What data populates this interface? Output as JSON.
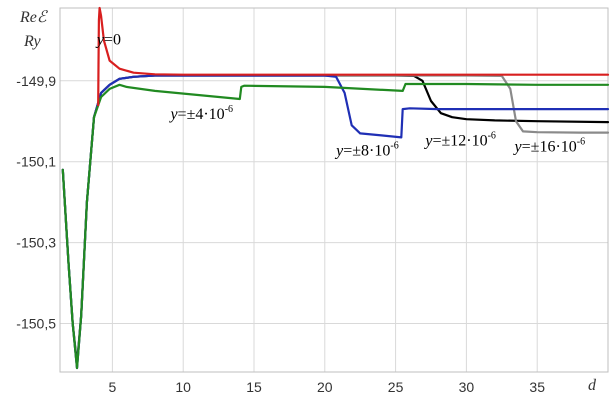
{
  "chart_data": {
    "type": "line",
    "title": "",
    "ylabel_line1": "Reℰ",
    "ylabel_line2": "Ry",
    "xlabel": "d",
    "xlim": [
      1.3,
      40
    ],
    "ylim": [
      -150.62,
      -149.72
    ],
    "x_ticks": [
      5,
      10,
      15,
      20,
      25,
      30,
      35
    ],
    "x_tick_labels": [
      "5",
      "10",
      "15",
      "20",
      "25",
      "30",
      "35"
    ],
    "y_ticks": [
      -149.9,
      -150.1,
      -150.3,
      -150.5
    ],
    "y_tick_labels": [
      "-149,9",
      "-150,1",
      "-150,3",
      "-150,5"
    ],
    "grid": true,
    "legend": "none",
    "annotations": [
      {
        "prefix": "y",
        "text": "=0",
        "sup": "",
        "color": "#000000",
        "x": 3.9,
        "y": -149.81
      },
      {
        "prefix": "y",
        "text": "=±4·10",
        "sup": "-6",
        "color": "#000000",
        "x": 9.1,
        "y": -149.995
      },
      {
        "prefix": "y",
        "text": "=±8·10",
        "sup": "-6",
        "color": "#000000",
        "x": 20.8,
        "y": -150.085
      },
      {
        "prefix": "y",
        "text": "=±12·10",
        "sup": "-6",
        "color": "#000000",
        "x": 27.1,
        "y": -150.06
      },
      {
        "prefix": "y",
        "text": "=±16·10",
        "sup": "-6",
        "color": "#000000",
        "x": 33.4,
        "y": -150.075
      }
    ],
    "series": [
      {
        "color": "#000000",
        "x": [
          1.5,
          1.9,
          2.2,
          2.5,
          2.8,
          3.2,
          3.7,
          4.2,
          4.8,
          5.5,
          6.5,
          8,
          10,
          14,
          20,
          25,
          26.3,
          26.9,
          27.5,
          28.2,
          29,
          30,
          32,
          35,
          40
        ],
        "y": [
          -150.12,
          -150.35,
          -150.5,
          -150.6,
          -150.48,
          -150.2,
          -149.99,
          -149.93,
          -149.91,
          -149.895,
          -149.89,
          -149.887,
          -149.887,
          -149.887,
          -149.887,
          -149.887,
          -149.888,
          -149.9,
          -149.95,
          -149.98,
          -149.99,
          -149.995,
          -149.998,
          -150.0,
          -150.002
        ]
      },
      {
        "color": "#8a8a8a",
        "x": [
          1.5,
          1.9,
          2.2,
          2.5,
          2.8,
          3.2,
          3.7,
          4.2,
          4.8,
          5.5,
          6.5,
          8,
          10,
          14,
          20,
          25,
          30,
          32.5,
          33.1,
          33.5,
          34,
          35,
          38,
          40
        ],
        "y": [
          -150.12,
          -150.35,
          -150.5,
          -150.61,
          -150.48,
          -150.2,
          -149.99,
          -149.93,
          -149.91,
          -149.895,
          -149.89,
          -149.887,
          -149.887,
          -149.887,
          -149.887,
          -149.887,
          -149.887,
          -149.888,
          -149.92,
          -150.0,
          -150.025,
          -150.027,
          -150.028,
          -150.028
        ]
      },
      {
        "color": "#1f2fb5",
        "x": [
          1.5,
          1.9,
          2.2,
          2.5,
          2.8,
          3.2,
          3.7,
          4.2,
          4.8,
          5.5,
          6.5,
          8,
          10,
          14,
          20,
          20.8,
          21.4,
          21.9,
          22.5,
          24,
          25.4,
          25.5,
          26,
          28,
          30,
          35,
          40
        ],
        "y": [
          -150.12,
          -150.35,
          -150.5,
          -150.61,
          -150.48,
          -150.2,
          -149.99,
          -149.93,
          -149.91,
          -149.895,
          -149.89,
          -149.887,
          -149.887,
          -149.887,
          -149.887,
          -149.89,
          -149.93,
          -150.01,
          -150.03,
          -150.035,
          -150.04,
          -149.97,
          -149.968,
          -149.97,
          -149.97,
          -149.97,
          -149.97
        ]
      },
      {
        "color": "#218a21",
        "x": [
          1.5,
          1.9,
          2.2,
          2.5,
          2.8,
          3.2,
          3.7,
          4.2,
          4.8,
          5.5,
          6,
          8,
          14,
          14.1,
          14.3,
          20,
          25.5,
          25.7,
          30,
          35,
          40
        ],
        "y": [
          -150.12,
          -150.35,
          -150.5,
          -150.61,
          -150.48,
          -150.2,
          -149.99,
          -149.94,
          -149.92,
          -149.91,
          -149.915,
          -149.925,
          -149.945,
          -149.915,
          -149.912,
          -149.915,
          -149.925,
          -149.908,
          -149.908,
          -149.91,
          -149.91
        ]
      },
      {
        "color": "#d81f1f",
        "x": [
          4.0,
          4.02,
          4.05,
          4.1,
          4.2,
          4.4,
          4.8,
          5.5,
          6.5,
          8,
          10,
          15,
          20,
          30,
          40
        ],
        "y": [
          -149.96,
          -149.86,
          -149.75,
          -149.72,
          -149.74,
          -149.8,
          -149.85,
          -149.87,
          -149.88,
          -149.884,
          -149.885,
          -149.885,
          -149.885,
          -149.885,
          -149.885
        ]
      }
    ]
  }
}
